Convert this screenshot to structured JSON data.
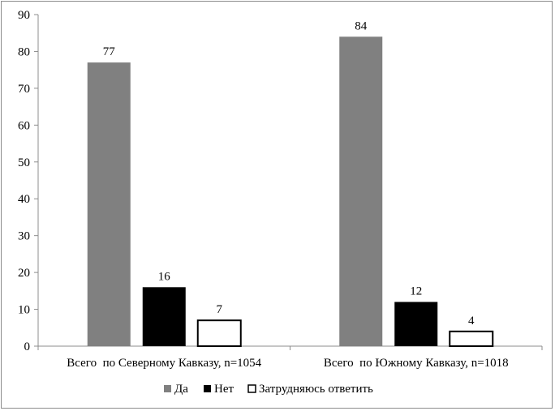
{
  "chart_data": {
    "type": "bar",
    "categories": [
      "Всего  по Северному Кавказу, n=1054",
      "Всего  по Южному Кавказу, n=1018"
    ],
    "series": [
      {
        "name": "Да",
        "values": [
          77,
          84
        ],
        "color": "#808080"
      },
      {
        "name": "Нет",
        "values": [
          16,
          12
        ],
        "color": "#000000"
      },
      {
        "name": "Затрудняюсь ответить",
        "values": [
          7,
          4
        ],
        "color": "#ffffff"
      }
    ],
    "ylim": [
      0,
      90
    ],
    "yticks": [
      0,
      10,
      20,
      30,
      40,
      50,
      60,
      70,
      80,
      90
    ],
    "grid": false,
    "legend": "bottom",
    "data_labels": true
  }
}
